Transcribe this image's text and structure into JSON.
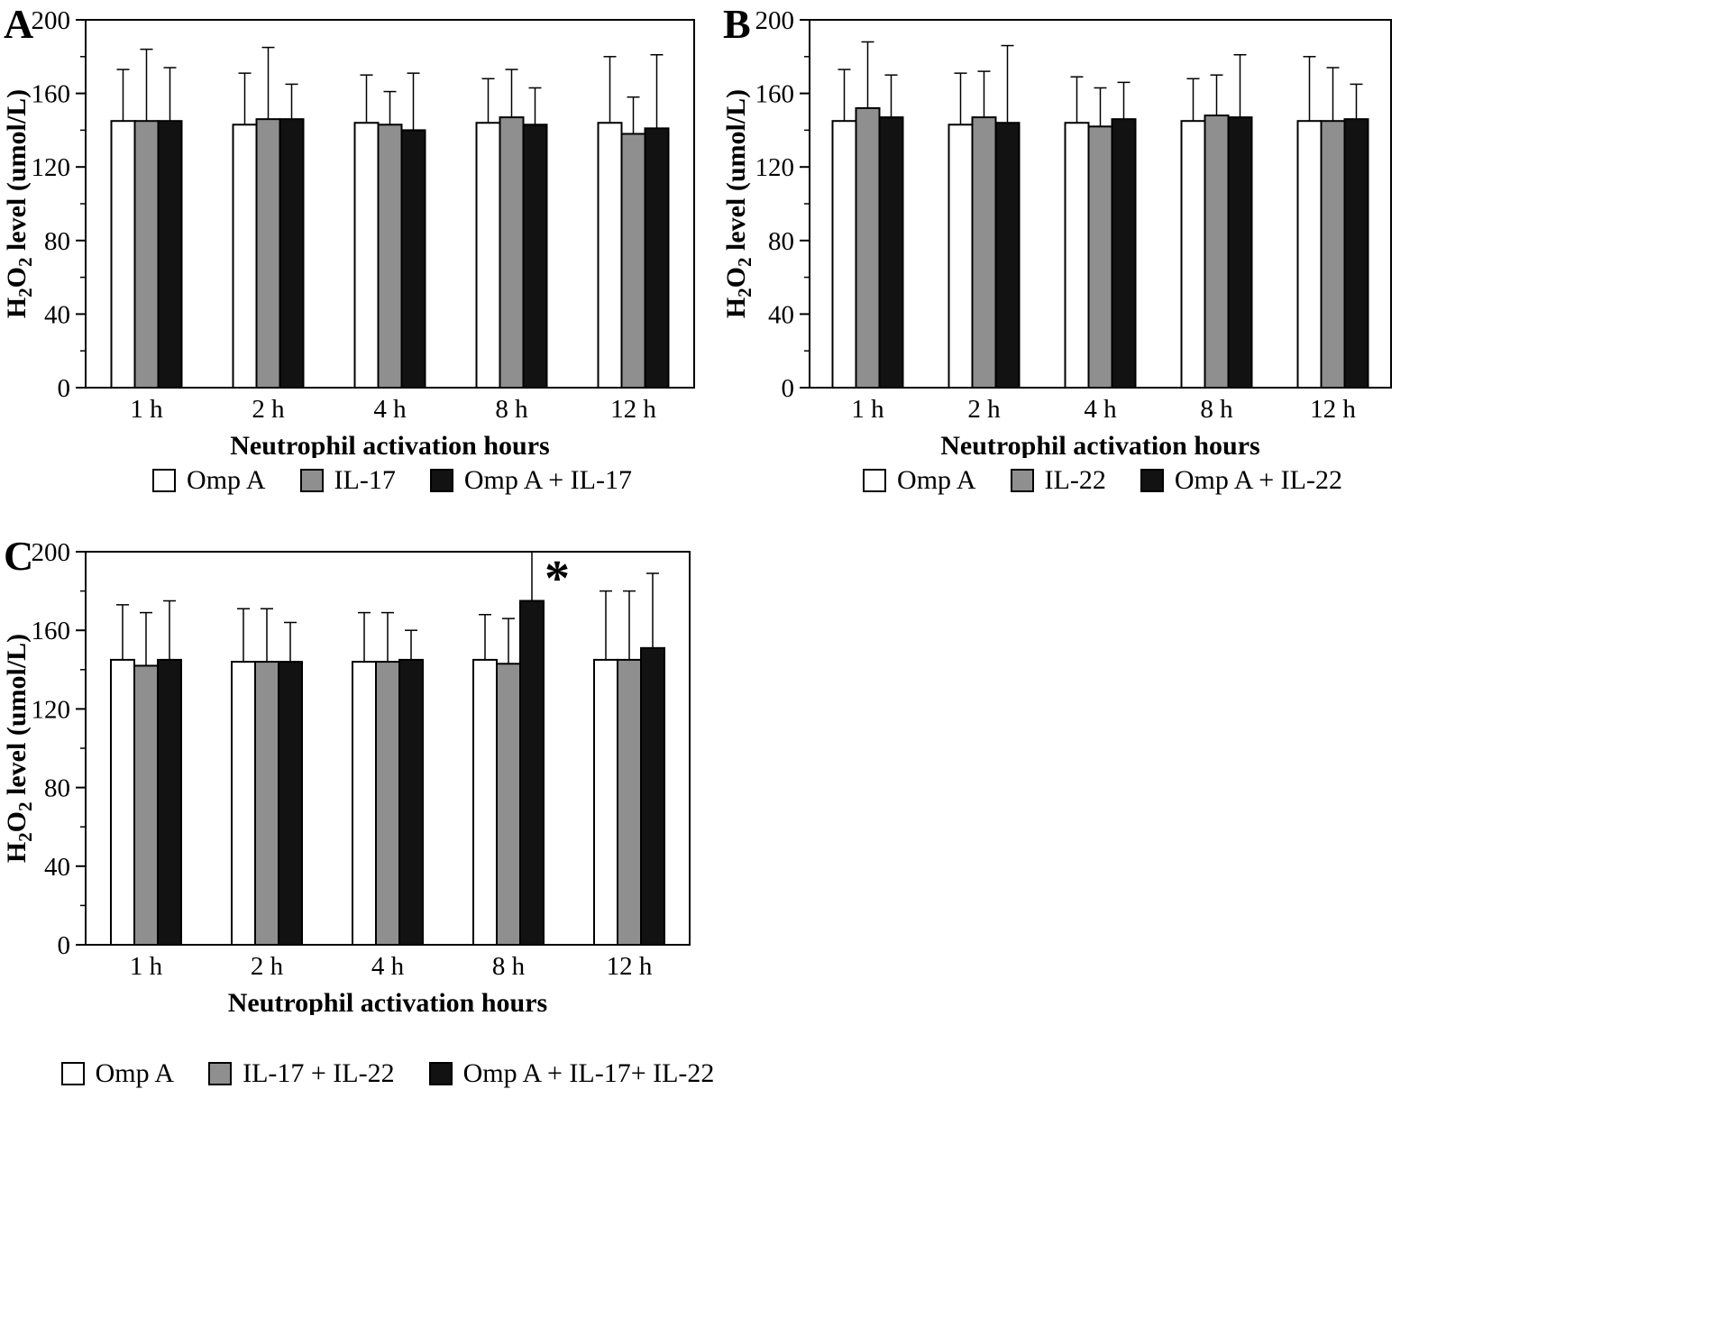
{
  "chart_data": [
    {
      "panel": "A",
      "type": "bar",
      "title": "",
      "xlabel": "Neutrophil activation hours",
      "ylabel": "H2O2 level (umol/L)",
      "ylabel_parts": [
        [
          "H",
          false
        ],
        [
          "2",
          true
        ],
        [
          "O",
          false
        ],
        [
          "2",
          true
        ],
        [
          " level (umol/L)",
          false
        ]
      ],
      "ylim": [
        0,
        200
      ],
      "yticks": [
        0,
        40,
        80,
        120,
        160,
        200
      ],
      "categories": [
        "1 h",
        "2 h",
        "4 h",
        "8 h",
        "12 h"
      ],
      "legend_position": "bottom",
      "series": [
        {
          "name": "Omp A",
          "fill": "#ffffff",
          "values": [
            145,
            143,
            144,
            144,
            144
          ],
          "error_top": [
            173,
            171,
            170,
            168,
            180
          ]
        },
        {
          "name": "IL-17",
          "fill": "#8f8f8f",
          "values": [
            145,
            146,
            143,
            147,
            138
          ],
          "error_top": [
            184,
            185,
            161,
            173,
            158
          ]
        },
        {
          "name": "Omp A + IL-17",
          "fill": "#121212",
          "values": [
            145,
            146,
            140,
            143,
            141
          ],
          "error_top": [
            174,
            165,
            171,
            163,
            181
          ]
        }
      ],
      "annotations": []
    },
    {
      "panel": "B",
      "type": "bar",
      "title": "",
      "xlabel": "Neutrophil activation hours",
      "ylabel": "H2O2 level (umol/L)",
      "ylabel_parts": [
        [
          "H",
          false
        ],
        [
          "2",
          true
        ],
        [
          "O",
          false
        ],
        [
          "2",
          true
        ],
        [
          " level (umol/L)",
          false
        ]
      ],
      "ylim": [
        0,
        200
      ],
      "yticks": [
        0,
        40,
        80,
        120,
        160,
        200
      ],
      "categories": [
        "1 h",
        "2 h",
        "4 h",
        "8 h",
        "12 h"
      ],
      "legend_position": "bottom",
      "series": [
        {
          "name": "Omp A",
          "fill": "#ffffff",
          "values": [
            145,
            143,
            144,
            145,
            145
          ],
          "error_top": [
            173,
            171,
            169,
            168,
            180
          ]
        },
        {
          "name": "IL-22",
          "fill": "#8f8f8f",
          "values": [
            152,
            147,
            142,
            148,
            145
          ],
          "error_top": [
            188,
            172,
            163,
            170,
            174
          ]
        },
        {
          "name": "Omp A + IL-22",
          "fill": "#121212",
          "values": [
            147,
            144,
            146,
            147,
            146
          ],
          "error_top": [
            170,
            186,
            166,
            181,
            165
          ]
        }
      ],
      "annotations": []
    },
    {
      "panel": "C",
      "type": "bar",
      "title": "",
      "xlabel": "Neutrophil activation hours",
      "ylabel": "H2O2 level (umol/L)",
      "ylabel_parts": [
        [
          "H",
          false
        ],
        [
          "2",
          true
        ],
        [
          "O",
          false
        ],
        [
          "2",
          true
        ],
        [
          " level (umol/L)",
          false
        ]
      ],
      "ylim": [
        0,
        200
      ],
      "yticks": [
        0,
        40,
        80,
        120,
        160,
        200
      ],
      "categories": [
        "1 h",
        "2 h",
        "4 h",
        "8 h",
        "12 h"
      ],
      "legend_position": "bottom",
      "series": [
        {
          "name": "Omp A",
          "fill": "#ffffff",
          "values": [
            145,
            144,
            144,
            145,
            145
          ],
          "error_top": [
            173,
            171,
            169,
            168,
            180
          ]
        },
        {
          "name": "IL-17 + IL-22",
          "fill": "#8f8f8f",
          "values": [
            142,
            144,
            144,
            143,
            145
          ],
          "error_top": [
            169,
            171,
            169,
            166,
            180
          ]
        },
        {
          "name": "Omp A + IL-17+ IL-22",
          "fill": "#121212",
          "values": [
            145,
            144,
            145,
            175,
            151
          ],
          "error_top": [
            175,
            164,
            160,
            200,
            189
          ]
        }
      ],
      "annotations": [
        {
          "text": "*",
          "category_index": 3,
          "series_index": 2
        }
      ]
    }
  ]
}
